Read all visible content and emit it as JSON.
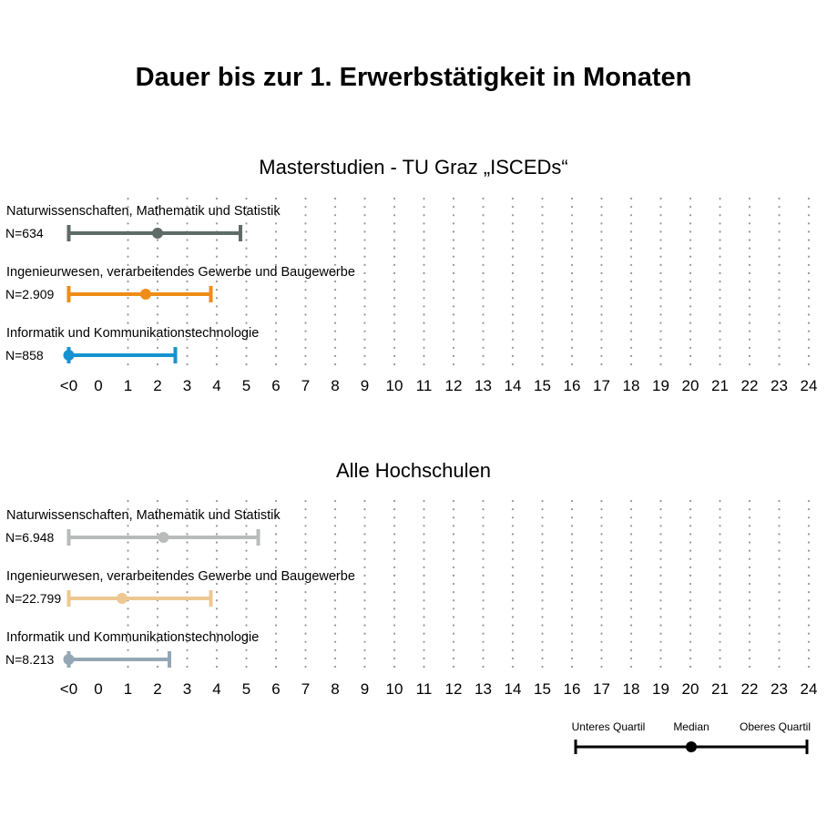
{
  "title": "Dauer bis zur 1. Erwerbstätigkeit in Monaten",
  "chart_data": {
    "type": "dot-interval",
    "x_ticks": [
      "<0",
      "0",
      "1",
      "2",
      "3",
      "4",
      "5",
      "6",
      "7",
      "8",
      "9",
      "10",
      "11",
      "12",
      "13",
      "14",
      "15",
      "16",
      "17",
      "18",
      "19",
      "20",
      "21",
      "22",
      "23",
      "24"
    ],
    "x_unit": "Monate",
    "grid": "vertical dotted",
    "panels": [
      {
        "title": "Masterstudien - TU Graz „ISCEDs“",
        "rows": [
          {
            "category": "Naturwissenschaften, Mathematik und Statistik",
            "n_label": "N=634",
            "q1": -1.0,
            "median": 2.0,
            "q3": 4.8,
            "color": "#5f6b66"
          },
          {
            "category": "Ingenieurwesen, verarbeitendes Gewerbe und Baugewerbe",
            "n_label": "N=2.909",
            "q1": -1.0,
            "median": 1.6,
            "q3": 3.8,
            "color": "#ef8d16"
          },
          {
            "category": "Informatik und Kommunikationstechnologie",
            "n_label": "N=858",
            "q1": -1.0,
            "median": -1.0,
            "q3": 2.6,
            "color": "#1593d0"
          }
        ]
      },
      {
        "title": "Alle Hochschulen",
        "rows": [
          {
            "category": "Naturwissenschaften, Mathematik und Statistik",
            "n_label": "N=6.948",
            "q1": -1.0,
            "median": 2.2,
            "q3": 5.4,
            "color": "#b9bbbb"
          },
          {
            "category": "Ingenieurwesen, verarbeitendes Gewerbe und Baugewerbe",
            "n_label": "N=22.799",
            "q1": -1.0,
            "median": 0.8,
            "q3": 3.8,
            "color": "#edc891"
          },
          {
            "category": "Informatik und Kommunikationstechnologie",
            "n_label": "N=8.213",
            "q1": -1.0,
            "median": -1.0,
            "q3": 2.4,
            "color": "#93a7b5"
          }
        ]
      }
    ],
    "legend": {
      "placement": "bottom-right",
      "lower_label": "Unteres Quartil",
      "median_label": "Median",
      "upper_label": "Oberes Quartil",
      "color": "#000000"
    }
  }
}
